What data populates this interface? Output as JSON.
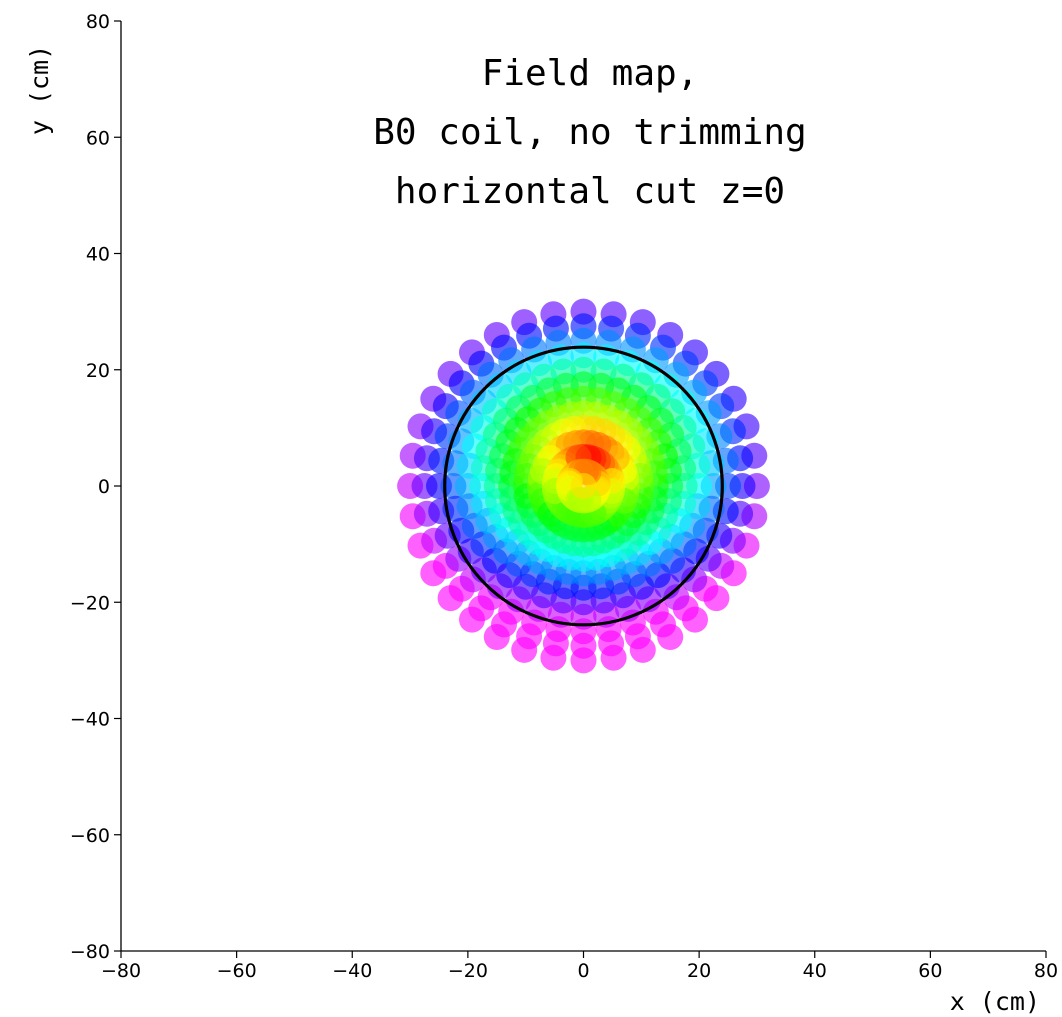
{
  "chart_data": {
    "type": "scatter",
    "title_lines": [
      "Field map,",
      "B0 coil, no trimming",
      "horizontal cut z=0"
    ],
    "xlabel": "x (cm)",
    "ylabel": "y (cm)",
    "xlim": [
      -80,
      80
    ],
    "ylim": [
      -80,
      80
    ],
    "xticks": [
      -80,
      -60,
      -40,
      -20,
      0,
      20,
      40,
      60,
      80
    ],
    "yticks": [
      -80,
      -60,
      -40,
      -20,
      0,
      20,
      40,
      60,
      80
    ],
    "xtick_labels": [
      "−80",
      "−60",
      "−40",
      "−20",
      "0",
      "20",
      "40",
      "60",
      "80"
    ],
    "ytick_labels": [
      "−80",
      "−60",
      "−40",
      "−20",
      "0",
      "20",
      "40",
      "60",
      "80"
    ],
    "grid": false,
    "colormap": "hsv",
    "sample_grid": {
      "radii": [
        0,
        2.5,
        5,
        7.5,
        10,
        12.5,
        15,
        17.5,
        20,
        22.5,
        25,
        27.5,
        30
      ],
      "angle_step_deg": 10
    },
    "field_hotspot": [
      1,
      5
    ],
    "circle": {
      "center": [
        0,
        0
      ],
      "radius": 24,
      "color": "#000000"
    }
  }
}
